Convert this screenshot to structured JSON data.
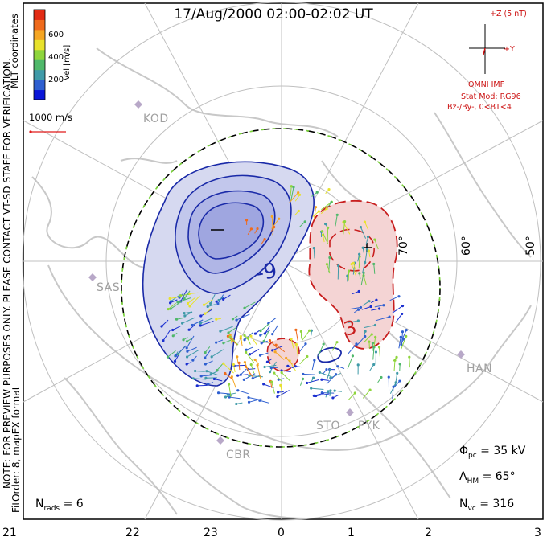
{
  "title": "17/Aug/2000 02:00-02:02 UT",
  "side_notes": {
    "note": "NOTE: FOR PREVIEW PURPOSES ONLY. PLEASE CONTACT VT-SD STAFF FOR VERIFICATION.",
    "fit": "FitOrder: 8, mapEX format",
    "coords": "MLT coordinates"
  },
  "colorbar": {
    "label": "Vel [m/s]",
    "ticks": [
      "600",
      "400",
      "200"
    ],
    "colors": [
      "#0a16d8",
      "#2e5fd0",
      "#3f9aa8",
      "#4fb86a",
      "#8ed53c",
      "#e8e22c",
      "#f5a623",
      "#ef6a1c",
      "#e22b14"
    ]
  },
  "scale": {
    "label": "1000 m/s",
    "color": "#e11a1a"
  },
  "imf": {
    "z_label": "+Z (5 nT)",
    "y_label": "+Y",
    "source": "OMNI IMF",
    "model": "Stat Mod: RG96",
    "condition": "Bz-/By-, 0<BT<4"
  },
  "stations": [
    "KOD",
    "SAS",
    "CBR",
    "STO",
    "PYK",
    "HAN"
  ],
  "latitude_labels": [
    "70°",
    "60°",
    "50°"
  ],
  "contour_labels": {
    "negative": "-9",
    "positive": "3",
    "min_marker": "−",
    "max_marker": "+"
  },
  "stats": {
    "phi_pc_label": "Φ",
    "phi_pc_sub": "pc",
    "phi_pc_value": "= 35 kV",
    "lambda_label": "Λ",
    "lambda_sub": "HM",
    "lambda_value": "= 65°",
    "nvc_label": "N",
    "nvc_sub": "vc",
    "nvc_value": "= 316",
    "nrads_label": "N",
    "nrads_sub": "rads",
    "nrads_value": "= 6"
  },
  "mlt_ticks": [
    "21",
    "22",
    "23",
    "0",
    "1",
    "2",
    "3"
  ],
  "colors": {
    "neg_fill": "#ccd0ee",
    "neg_line": "#1a2aa8",
    "pos_fill": "#f4d4d4",
    "pos_line": "#c81e1e",
    "grid": "#c0c0c0",
    "land": "#c8c8c8"
  }
}
